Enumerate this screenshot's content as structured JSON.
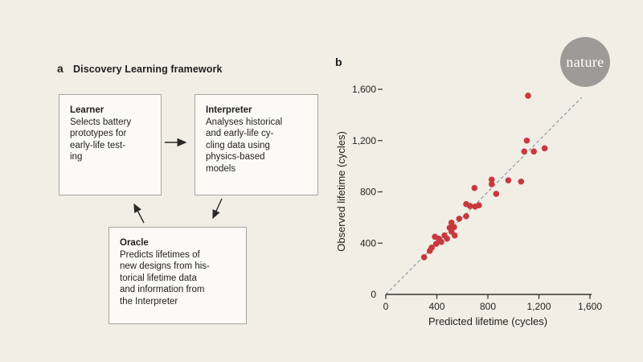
{
  "panel_a": {
    "label": "a",
    "title": "Discovery Learning framework",
    "boxes": [
      {
        "heading": "Learner",
        "body": "Selects battery\nprototypes for\nearly-life test-\ning"
      },
      {
        "heading": "Interpreter",
        "body": "Analyses historical\nand early-life cy-\ncling data using\nphysics-based\nmodels"
      },
      {
        "heading": "Oracle",
        "body": "Predicts lifetimes of\nnew designs from his-\ntorical lifetime data\nand information from\nthe Interpreter"
      }
    ]
  },
  "panel_b": {
    "label": "b"
  },
  "brand": {
    "logo_text": "nature",
    "logo_color": "#9c9b97"
  },
  "colors": {
    "background": "#f1eee6",
    "box_fill": "#fbfaf5",
    "box_border": "#a6a49f",
    "text": "#211f1c",
    "axis": "#35332e",
    "accent_red": "#c8393f",
    "dashed_line": "#87909a"
  },
  "chart_data": {
    "type": "scatter",
    "title": "",
    "xlabel": "Predicted lifetime (cycles)",
    "ylabel": "Observed lifetime (cycles)",
    "xlim": [
      0,
      1600
    ],
    "ylim": [
      0,
      1600
    ],
    "tick_values": [
      0,
      400,
      800,
      1200,
      1600
    ],
    "xtick_labels": [
      "0",
      "400",
      "800",
      "1,200",
      "1,600"
    ],
    "ytick_labels": [
      "0",
      "400",
      "800",
      "1,200",
      "1,600"
    ],
    "grid": false,
    "legend": "none",
    "point_color": "#c8393f",
    "identity_line": {
      "style": "dashed",
      "color": "#87909a",
      "from": [
        0,
        0
      ],
      "to": [
        1535,
        1535
      ]
    },
    "points": [
      [
        300,
        290
      ],
      [
        345,
        340
      ],
      [
        360,
        365
      ],
      [
        385,
        450
      ],
      [
        395,
        395
      ],
      [
        415,
        435
      ],
      [
        435,
        410
      ],
      [
        460,
        460
      ],
      [
        480,
        435
      ],
      [
        500,
        520
      ],
      [
        515,
        560
      ],
      [
        515,
        490
      ],
      [
        535,
        525
      ],
      [
        540,
        460
      ],
      [
        575,
        590
      ],
      [
        630,
        610
      ],
      [
        630,
        705
      ],
      [
        660,
        690
      ],
      [
        700,
        685
      ],
      [
        730,
        695
      ],
      [
        695,
        830
      ],
      [
        830,
        895
      ],
      [
        830,
        860
      ],
      [
        865,
        785
      ],
      [
        960,
        890
      ],
      [
        1060,
        880
      ],
      [
        1085,
        1115
      ],
      [
        1105,
        1200
      ],
      [
        1160,
        1115
      ],
      [
        1245,
        1140
      ],
      [
        1115,
        1550
      ]
    ]
  }
}
